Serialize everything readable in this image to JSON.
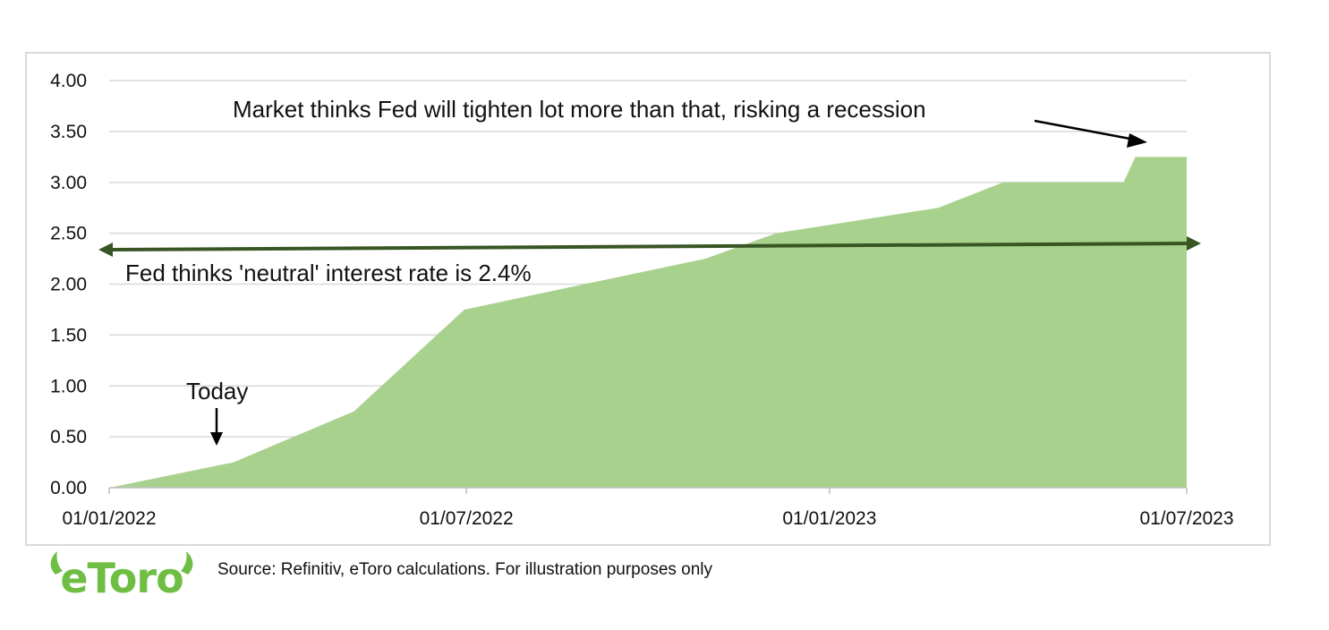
{
  "chart_data": {
    "type": "area",
    "title": "",
    "xlabel": "",
    "ylabel": "",
    "x_tick_labels": [
      "01/01/2022",
      "01/07/2022",
      "01/01/2023",
      "01/07/2023"
    ],
    "y_tick_labels": [
      "0.00",
      "0.50",
      "1.00",
      "1.50",
      "2.00",
      "2.50",
      "3.00",
      "3.50",
      "4.00"
    ],
    "ylim": [
      0,
      4
    ],
    "xlim": [
      "2022-01-01",
      "2023-07-01"
    ],
    "grid": "horizontal",
    "fill_color": "#a9d18e",
    "series": [
      {
        "x": [
          "2022-01-01",
          "2022-03-05",
          "2022-05-05",
          "2022-06-30",
          "2022-10-30",
          "2022-12-05",
          "2023-02-25",
          "2023-03-30",
          "2023-05-30",
          "2023-06-05",
          "2023-07-01"
        ],
        "values": [
          0.0,
          0.25,
          0.75,
          1.75,
          2.25,
          2.5,
          2.75,
          3.0,
          3.0,
          3.25,
          3.25
        ]
      }
    ],
    "reference_line": {
      "label": "Fed thinks 'neutral' interest rate is 2.4%",
      "value": 2.4,
      "color": "#375623"
    },
    "annotations": [
      {
        "text": "Market thinks Fed will tighten lot more than that, risking a recession",
        "x": "2023-07-01",
        "y": 3.35
      },
      {
        "text": "Today",
        "x": "2022-02-25",
        "y": 0.4
      }
    ]
  },
  "logo": {
    "text": "eToro",
    "color": "#6ebe44"
  },
  "source_note": "Source: Refinitiv, eToro calculations. For illustration purposes only"
}
